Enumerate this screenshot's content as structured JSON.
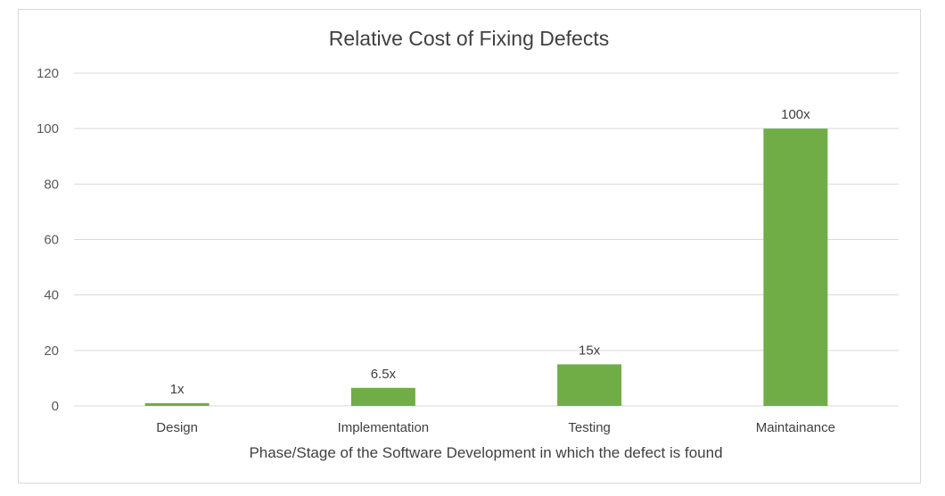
{
  "chart_data": {
    "type": "bar",
    "title": "Relative Cost of Fixing Defects",
    "xlabel": "Phase/Stage of the Software Development in which the defect is found",
    "ylabel": "",
    "categories": [
      "Design",
      "Implementation",
      "Testing",
      "Maintainance"
    ],
    "values": [
      1,
      6.5,
      15,
      100
    ],
    "data_labels": [
      "1x",
      "6.5x",
      "15x",
      "100x"
    ],
    "ylim": [
      0,
      120
    ],
    "yticks": [
      0,
      20,
      40,
      60,
      80,
      100,
      120
    ],
    "grid": true,
    "legend": "none",
    "bar_color": "#70ad47",
    "grid_color": "#d9d9d9"
  }
}
